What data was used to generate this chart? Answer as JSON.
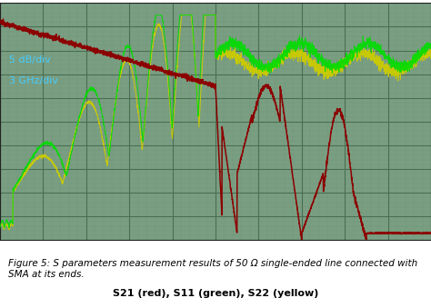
{
  "title": "Figure 5: S parameters measurement results of 50 Ω single-ended line connected with SMA at its ends.",
  "subtitle": "S21 (red), S11 (green), S22 (yellow)",
  "annotation_line1": "5 dB/div",
  "annotation_line2": "3 GHz/div",
  "bg_color": "#7a9e82",
  "grid_major_color": "#4a6e52",
  "grid_minor_color": "#5a7e60",
  "s21_color": "#8b0000",
  "s11_color": "#00dd00",
  "s22_color": "#cccc00",
  "title_fontsize": 7.5,
  "subtitle_fontsize": 8,
  "annotation_color": "#44ccff",
  "xlim": [
    0,
    10
  ],
  "ylim": [
    0,
    10
  ]
}
